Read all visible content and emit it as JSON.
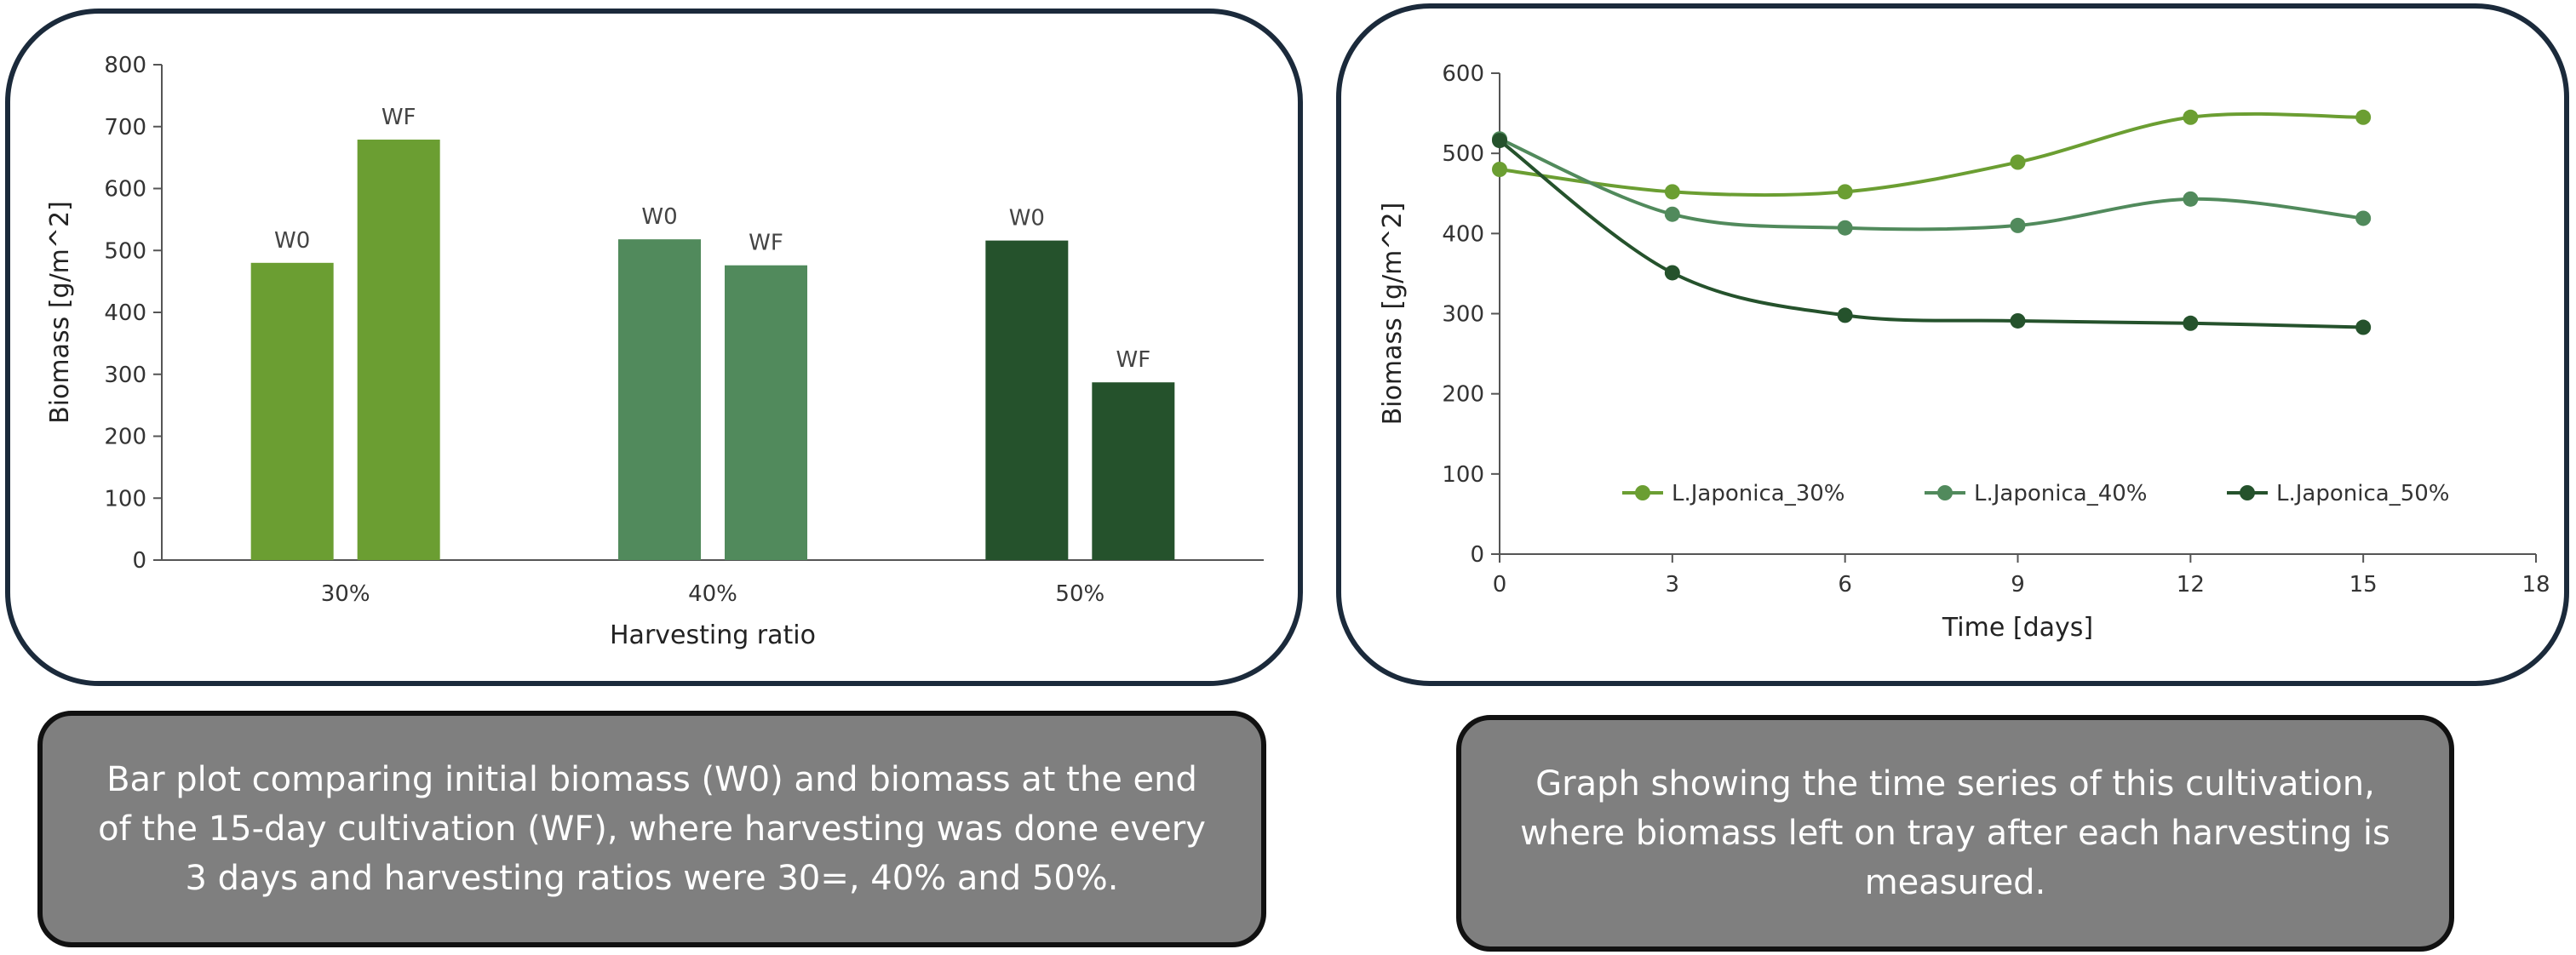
{
  "colors": {
    "series_30": "#6b9e32",
    "series_40": "#518a5c",
    "series_50": "#25522c",
    "axis": "#555555",
    "panel_border": "#1b2a3b",
    "caption_bg": "#7f7f7f"
  },
  "chart_data": [
    {
      "type": "bar",
      "xlabel": "Harvesting ratio",
      "ylabel": "Biomass [g/m^2]",
      "ylim": [
        0,
        800
      ],
      "yticks": [
        0,
        100,
        200,
        300,
        400,
        500,
        600,
        700,
        800
      ],
      "categories": [
        "30%",
        "40%",
        "50%"
      ],
      "bars": [
        {
          "category": "30%",
          "label": "W0",
          "value": 480
        },
        {
          "category": "30%",
          "label": "WF",
          "value": 679
        },
        {
          "category": "40%",
          "label": "W0",
          "value": 518
        },
        {
          "category": "40%",
          "label": "WF",
          "value": 476
        },
        {
          "category": "50%",
          "label": "W0",
          "value": 516
        },
        {
          "category": "50%",
          "label": "WF",
          "value": 287
        }
      ],
      "grid": false,
      "legend": "none"
    },
    {
      "type": "line",
      "xlabel": "Time [days]",
      "ylabel": "Biomass [g/m^2]",
      "xlim": [
        0,
        18
      ],
      "ylim": [
        0,
        600
      ],
      "xticks": [
        0,
        3,
        6,
        9,
        12,
        15,
        18
      ],
      "yticks": [
        0,
        100,
        200,
        300,
        400,
        500,
        600
      ],
      "x": [
        0,
        3,
        6,
        9,
        12,
        15
      ],
      "series": [
        {
          "name": "L.Japonica_30%",
          "values": [
            480,
            452,
            452,
            489,
            545,
            545
          ]
        },
        {
          "name": "L.Japonica_40%",
          "values": [
            518,
            424,
            407,
            410,
            443,
            419
          ]
        },
        {
          "name": "L.Japonica_50%",
          "values": [
            516,
            351,
            298,
            291,
            288,
            283
          ]
        }
      ],
      "grid": false,
      "legend": "bottom-inside"
    }
  ],
  "captions": {
    "left": "Bar plot comparing initial biomass (W0) and biomass at the end of the 15-day cultivation (WF), where harvesting was done every 3 days and harvesting ratios were 30=, 40% and 50%.",
    "right": "Graph showing the time series of this cultivation, where biomass left on tray after each harvesting is measured."
  }
}
